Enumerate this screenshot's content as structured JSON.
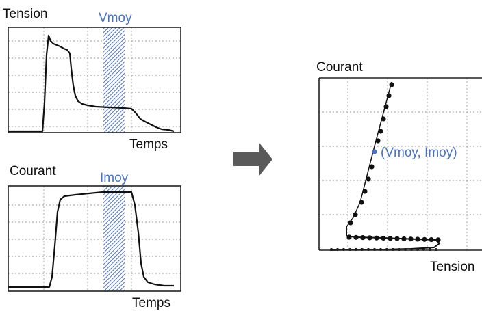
{
  "accent_color": "#4a72c4",
  "band_color": "#4a72c4",
  "arrow_color": "#5a5a5a",
  "voltage_panel": {
    "y_label": "Tension",
    "x_label": "Temps",
    "band_label": "Vmoy"
  },
  "current_panel": {
    "y_label": "Courant",
    "x_label": "Temps",
    "band_label": "Imoy"
  },
  "iv_panel": {
    "y_label": "Courant",
    "x_label": "Tension",
    "point_label": "(Vmoy, Imoy)"
  },
  "arrow_icon": "right-arrow-icon"
}
